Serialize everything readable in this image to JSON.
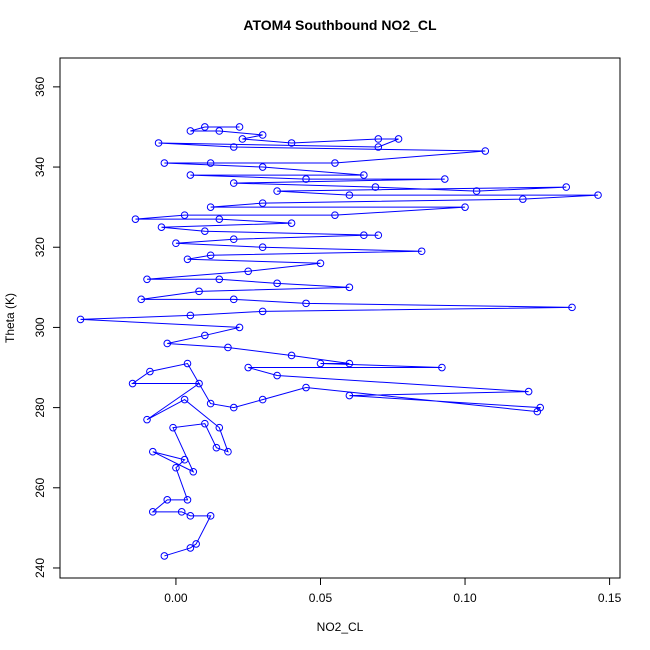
{
  "chart_data": {
    "type": "line",
    "title": "ATOM4 Southbound NO2_CL",
    "x_label": "NO2_CL",
    "y_label": "Theta (K)",
    "markers": "circle",
    "x": [
      -0.004,
      0.005,
      0.007,
      0.012,
      0.005,
      0.002,
      -0.008,
      -0.003,
      0.004,
      0.0,
      0.003,
      -0.008,
      0.006,
      -0.001,
      0.01,
      0.014,
      0.018,
      0.015,
      0.003,
      -0.01,
      0.008,
      -0.015,
      -0.009,
      0.004,
      0.012,
      0.02,
      0.03,
      0.045,
      0.125,
      0.126,
      0.06,
      0.122,
      0.035,
      0.025,
      0.092,
      0.05,
      0.06,
      0.04,
      0.018,
      -0.003,
      0.01,
      0.022,
      -0.033,
      0.005,
      0.03,
      0.137,
      0.045,
      0.02,
      -0.012,
      0.008,
      0.06,
      0.035,
      0.015,
      -0.01,
      0.025,
      0.05,
      0.004,
      0.012,
      0.085,
      0.03,
      0.0,
      0.02,
      0.065,
      0.07,
      0.01,
      -0.005,
      0.04,
      0.015,
      -0.014,
      0.003,
      0.055,
      0.1,
      0.012,
      0.03,
      0.12,
      0.146,
      0.06,
      0.035,
      0.135,
      0.104,
      0.069,
      0.02,
      0.093,
      0.045,
      0.005,
      0.065,
      0.03,
      -0.004,
      0.012,
      0.055,
      0.107,
      0.02,
      -0.006,
      0.07,
      0.077,
      0.07,
      0.04,
      0.023,
      0.03,
      0.015,
      0.005,
      0.01,
      0.022
    ],
    "series": [
      {
        "name": "Theta (K)",
        "color": "#0000ff",
        "values": [
          243,
          245,
          246,
          253,
          253,
          254,
          254,
          257,
          257,
          265,
          267,
          269,
          264,
          275,
          276,
          270,
          269,
          275,
          282,
          277,
          286,
          286,
          289,
          291,
          281,
          280,
          282,
          285,
          279,
          280,
          283,
          284,
          288,
          290,
          290,
          291,
          291,
          293,
          295,
          296,
          298,
          300,
          302,
          303,
          304,
          305,
          306,
          307,
          307,
          309,
          310,
          311,
          312,
          312,
          314,
          316,
          317,
          318,
          319,
          320,
          321,
          322,
          323,
          323,
          324,
          325,
          326,
          327,
          327,
          328,
          328,
          330,
          330,
          331,
          332,
          333,
          333,
          334,
          335,
          334,
          335,
          336,
          337,
          337,
          338,
          338,
          340,
          341,
          341,
          341,
          344,
          345,
          346,
          345,
          347,
          347,
          346,
          347,
          348,
          349,
          349,
          350,
          350
        ]
      }
    ],
    "xlim": [
      -0.0401,
      0.1536
    ],
    "ylim": [
      237.5,
      367.2
    ],
    "xticks": [
      {
        "value": 0,
        "label": "0.00"
      },
      {
        "value": 0.05,
        "label": "0.05"
      },
      {
        "value": 0.1,
        "label": "0.10"
      },
      {
        "value": 0.15,
        "label": "0.15"
      }
    ],
    "yticks": [
      240,
      260,
      280,
      300,
      320,
      340,
      360
    ]
  }
}
